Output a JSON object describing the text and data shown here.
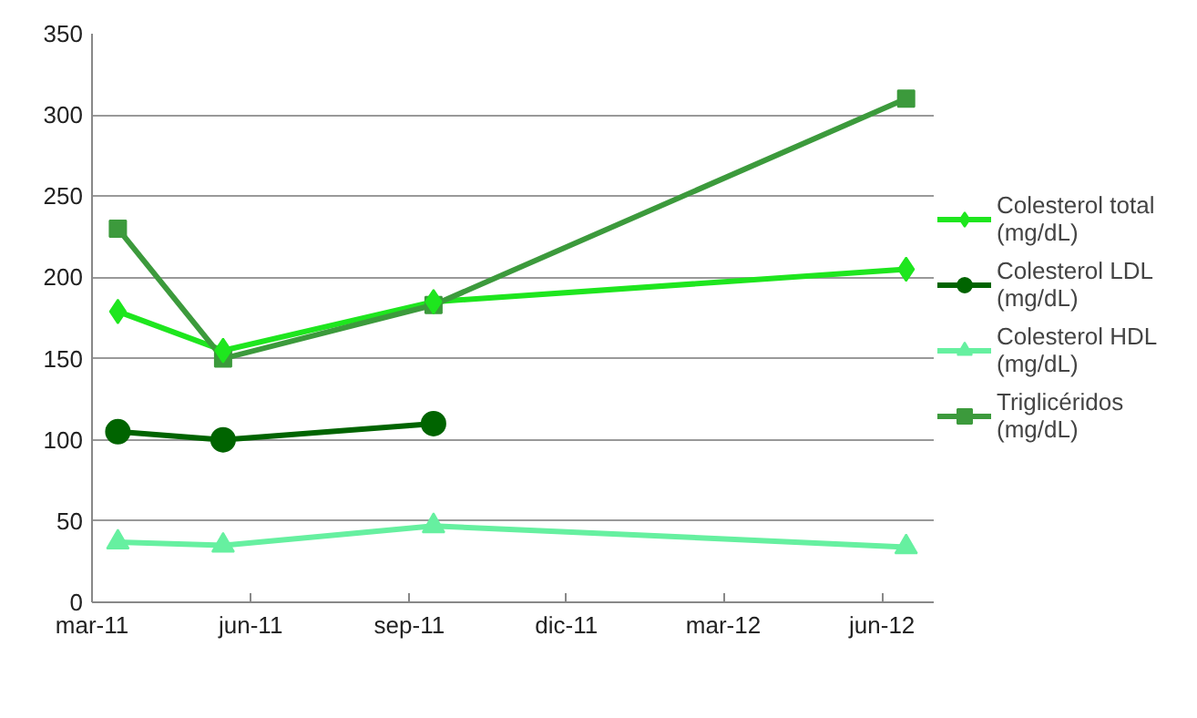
{
  "chart_data": {
    "type": "line",
    "x": [
      "2011-03-16",
      "2011-05-16",
      "2011-09-15",
      "2012-06-15"
    ],
    "series": [
      {
        "name": "Colesterol total (mg/dL)",
        "color": "#1ee61e",
        "marker": "diamond",
        "values": [
          179,
          155,
          185,
          205
        ]
      },
      {
        "name": "Colesterol LDL (mg/dL)",
        "color": "#006400",
        "marker": "circle",
        "values": [
          105,
          100,
          110,
          null
        ]
      },
      {
        "name": "Colesterol HDL (mg/dL)",
        "color": "#66f0a0",
        "marker": "triangle",
        "values": [
          37,
          35,
          47,
          34
        ]
      },
      {
        "name": "Triglicéridos (mg/dL)",
        "color": "#3c9a3c",
        "marker": "square",
        "values": [
          230,
          150,
          183,
          310
        ]
      }
    ],
    "xlim": [
      "2011-03-01",
      "2012-07-01"
    ],
    "xticks": [
      {
        "value": "2011-03-01",
        "label": "mar-11"
      },
      {
        "value": "2011-06-01",
        "label": "jun-11"
      },
      {
        "value": "2011-09-01",
        "label": "sep-11"
      },
      {
        "value": "2011-12-01",
        "label": "dic-11"
      },
      {
        "value": "2012-03-01",
        "label": "mar-12"
      },
      {
        "value": "2012-06-01",
        "label": "jun-12"
      }
    ],
    "ylim": [
      0,
      350
    ],
    "yticks": [
      0,
      50,
      100,
      150,
      200,
      250,
      300,
      350
    ],
    "grid": "y",
    "legend": "right",
    "line_style": "solid"
  }
}
